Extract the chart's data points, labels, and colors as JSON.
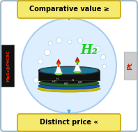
{
  "top_label": "Comparative value ≥",
  "bottom_label": "Distinct price «",
  "left_label": "MoS₂@PtCRC",
  "right_label": "Pt",
  "h2_text": "H₂",
  "bg_color": "#f2f2f2",
  "outer_rect_facecolor": "#ffffff",
  "outer_rect_edgecolor": "#a0b8c8",
  "top_box_color": "#f5e96e",
  "bottom_box_color": "#f5e96e",
  "top_box_edge": "#c8a800",
  "bottom_box_edge": "#c8a800",
  "left_box_color": "#111111",
  "right_box_color": "#cccccc",
  "circle_facecolor": "#ddeeff",
  "circle_edgecolor": "#aaccee",
  "h2_color": "#22cc22",
  "arrow_color": "#55aadd",
  "fig_width": 1.98,
  "fig_height": 1.89
}
